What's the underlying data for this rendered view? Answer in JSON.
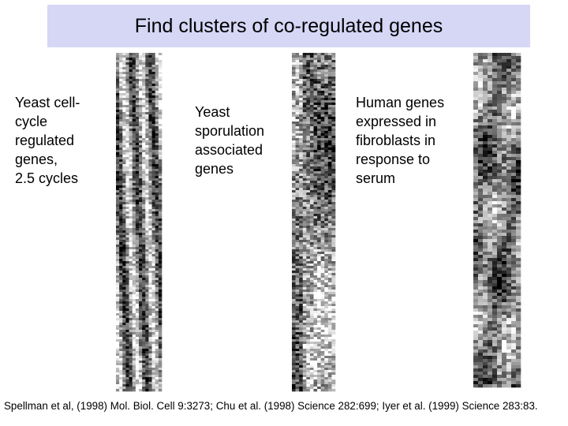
{
  "title": "Find clusters of co-regulated genes",
  "panels": [
    {
      "caption": [
        "Yeast cell-",
        "cycle",
        "regulated",
        "genes,",
        "2.5 cycles"
      ]
    },
    {
      "caption": [
        "Yeast",
        "sporulation",
        "associated",
        "genes"
      ]
    },
    {
      "caption": [
        "Human genes",
        "expressed in",
        "fibroblasts in",
        "response to",
        "serum"
      ]
    }
  ],
  "citation": "Spellman et al, (1998) Mol. Biol. Cell 9:3273; Chu et al. (1998) Science 282:699; Iyer et al. (1999) Science 283:83."
}
